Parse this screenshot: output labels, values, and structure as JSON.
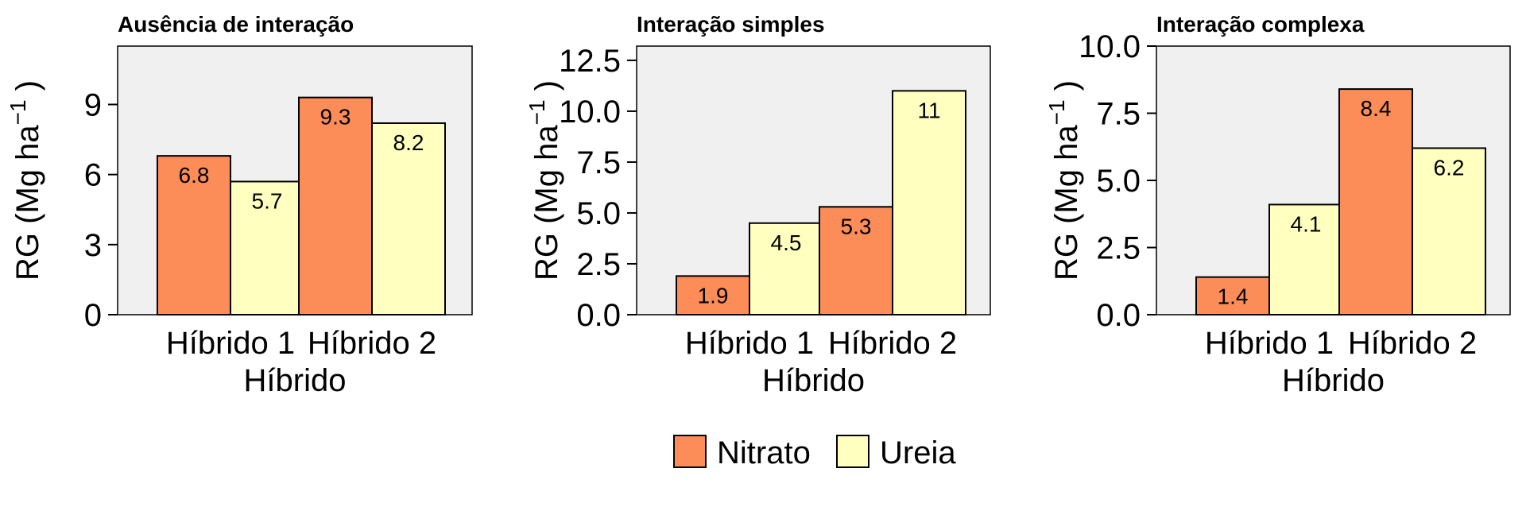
{
  "chart_data": [
    {
      "type": "bar",
      "title": "Ausência de interação",
      "xlabel": "Híbrido",
      "ylabel": "RG (Mg ha",
      "ylabel_sup": "−1",
      "ylabel_close": ")",
      "categories": [
        "Híbrido 1",
        "Híbrido 2"
      ],
      "series": [
        {
          "name": "Nitrato",
          "values": [
            6.8,
            9.3
          ],
          "labels": [
            "6.8",
            "9.3"
          ]
        },
        {
          "name": "Ureia",
          "values": [
            5.7,
            8.2
          ],
          "labels": [
            "5.7",
            "8.2"
          ]
        }
      ],
      "ylim": [
        0,
        11.5
      ],
      "yticks": [
        0,
        3,
        6,
        9
      ],
      "ytick_labels": [
        "0",
        "3",
        "6",
        "9"
      ],
      "grid": false
    },
    {
      "type": "bar",
      "title": "Interação simples",
      "xlabel": "Híbrido",
      "ylabel": "RG (Mg ha",
      "ylabel_sup": "−1",
      "ylabel_close": ")",
      "categories": [
        "Híbrido 1",
        "Híbrido 2"
      ],
      "series": [
        {
          "name": "Nitrato",
          "values": [
            1.9,
            5.3
          ],
          "labels": [
            "1.9",
            "5.3"
          ]
        },
        {
          "name": "Ureia",
          "values": [
            4.5,
            11
          ],
          "labels": [
            "4.5",
            "11"
          ]
        }
      ],
      "ylim": [
        0,
        13.2
      ],
      "yticks": [
        0,
        2.5,
        5,
        7.5,
        10,
        12.5
      ],
      "ytick_labels": [
        "0.0",
        "2.5",
        "5.0",
        "7.5",
        "10.0",
        "12.5"
      ],
      "grid": false
    },
    {
      "type": "bar",
      "title": "Interação complexa",
      "xlabel": "Híbrido",
      "ylabel": "RG (Mg ha",
      "ylabel_sup": "−1",
      "ylabel_close": ")",
      "categories": [
        "Híbrido 1",
        "Híbrido 2"
      ],
      "series": [
        {
          "name": "Nitrato",
          "values": [
            1.4,
            8.4
          ],
          "labels": [
            "1.4",
            "8.4"
          ]
        },
        {
          "name": "Ureia",
          "values": [
            4.1,
            6.2
          ],
          "labels": [
            "4.1",
            "6.2"
          ]
        }
      ],
      "ylim": [
        0,
        10
      ],
      "yticks": [
        0,
        2.5,
        5,
        7.5,
        10
      ],
      "ytick_labels": [
        "0.0",
        "2.5",
        "5.0",
        "7.5",
        "10.0"
      ],
      "grid": false
    }
  ],
  "legend": {
    "placement": "bottom",
    "items": [
      {
        "name": "Nitrato",
        "color": "#fc8d59"
      },
      {
        "name": "Ureia",
        "color": "#ffffbf"
      }
    ]
  },
  "colors": {
    "panel_background": "#f0f0f0",
    "bar_stroke": "#000000",
    "series": [
      "#fc8d59",
      "#ffffbf"
    ]
  }
}
